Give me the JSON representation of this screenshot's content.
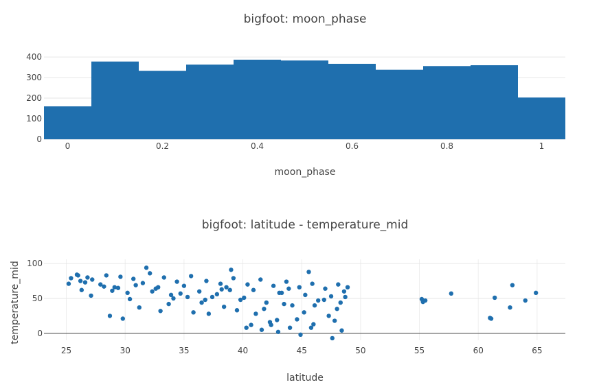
{
  "chart_data": [
    {
      "type": "bar",
      "title": "bigfoot: moon_phase",
      "xlabel": "moon_phase",
      "ylabel": "",
      "bin_edges": [
        -0.05,
        0.05,
        0.15,
        0.25,
        0.35,
        0.45,
        0.55,
        0.65,
        0.75,
        0.85,
        0.95,
        1.05
      ],
      "values": [
        160,
        378,
        333,
        363,
        387,
        383,
        367,
        338,
        356,
        360,
        203
      ],
      "xticks": [
        "0",
        "0.2",
        "0.4",
        "0.6",
        "0.8",
        "1"
      ],
      "yticks": [
        "0",
        "100",
        "200",
        "300",
        "400"
      ],
      "xlim": [
        -0.05,
        1.05
      ],
      "ylim": [
        0,
        407
      ],
      "grid": true,
      "color": "#1f6fae"
    },
    {
      "type": "scatter",
      "title": "bigfoot: latitude - temperature_mid",
      "xlabel": "latitude",
      "ylabel": "temperature_mid",
      "xticks": [
        "25",
        "30",
        "35",
        "40",
        "45",
        "50",
        "55",
        "60",
        "65"
      ],
      "yticks": [
        "0",
        "50",
        "100"
      ],
      "xlim": [
        23.1,
        67.4
      ],
      "ylim": [
        -10,
        106
      ],
      "grid": true,
      "color": "#1f6fae",
      "x": [
        25.2,
        25.4,
        25.9,
        26.3,
        26.8,
        27.2,
        27.9,
        28.4,
        29.1,
        29.6,
        30.2,
        30.7,
        31.5,
        32.1,
        32.6,
        33.3,
        33.9,
        34.4,
        35.0,
        35.6,
        36.3,
        36.9,
        37.4,
        38.1,
        38.6,
        39.2,
        39.8,
        40.4,
        40.9,
        41.5,
        42.0,
        42.6,
        43.1,
        43.7,
        44.2,
        44.8,
        45.3,
        45.9,
        46.4,
        47.0,
        47.5,
        48.1,
        48.6,
        48.9,
        26.6,
        28.9,
        30.4,
        32.8,
        34.7,
        36.5,
        38.4,
        40.1,
        41.8,
        43.5,
        45.2,
        46.9,
        48.3,
        27.1,
        31.2,
        35.8,
        39.5,
        42.9,
        47.3,
        29.4,
        33.7,
        37.8,
        41.1,
        44.6,
        48.0,
        26.2,
        30.9,
        34.1,
        38.9,
        43.3,
        46.1,
        48.7,
        28.2,
        32.3,
        36.8,
        40.7,
        44.0,
        47.8,
        31.8,
        39.0,
        45.6,
        41.6,
        43.0,
        44.9,
        46.0,
        47.6,
        40.3,
        42.3,
        37.1,
        33.0,
        28.7,
        29.8,
        35.3,
        42.4,
        45.8,
        48.4,
        55.2,
        55.5,
        57.7,
        61.0,
        61.4,
        62.7,
        62.9,
        64.0,
        64.9,
        61.1,
        55.3,
        26.0,
        38.2,
        43.9
      ],
      "y": [
        71,
        79,
        84,
        62,
        80,
        77,
        70,
        83,
        66,
        81,
        58,
        78,
        72,
        86,
        64,
        80,
        55,
        74,
        68,
        82,
        60,
        75,
        52,
        71,
        66,
        79,
        48,
        70,
        62,
        77,
        44,
        68,
        58,
        74,
        40,
        66,
        55,
        71,
        47,
        64,
        53,
        70,
        60,
        66,
        73,
        61,
        49,
        66,
        57,
        44,
        38,
        51,
        35,
        42,
        30,
        48,
        44,
        54,
        37,
        30,
        33,
        19,
        25,
        65,
        42,
        56,
        28,
        20,
        35,
        75,
        69,
        50,
        62,
        58,
        40,
        52,
        67,
        60,
        48,
        12,
        8,
        18,
        94,
        91,
        88,
        5,
        2,
        -2,
        13,
        -7,
        8,
        16,
        28,
        32,
        25,
        21,
        52,
        12,
        8,
        4,
        49,
        47,
        57,
        22,
        51,
        37,
        69,
        47,
        58,
        21,
        45,
        83,
        63,
        64
      ]
    }
  ]
}
